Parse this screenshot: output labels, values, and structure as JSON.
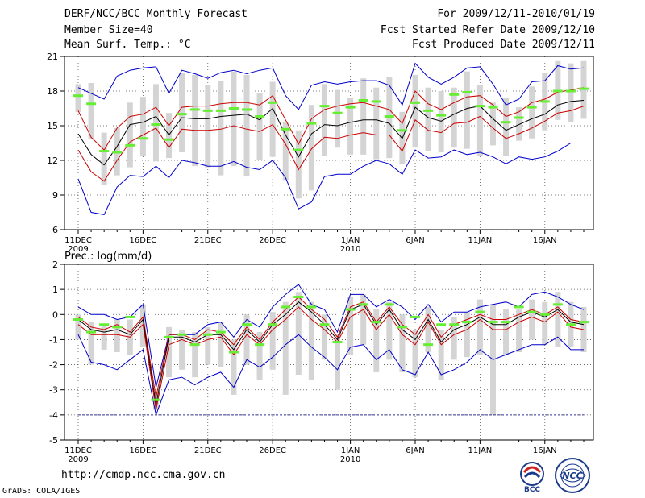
{
  "header": {
    "title": "DERF/NCC/BCC Monthly Forecast",
    "member_size": "Member Size=40",
    "variable": "Mean Surf. Temp.: °C",
    "period": "For 2009/12/11-2010/01/19",
    "started": "Fcst Started Refer Date 2009/12/10",
    "produced": "Fcst Produced Date 2009/12/11"
  },
  "footer": {
    "url": "http://cmdp.ncc.cma.gov.cn",
    "credit": "GrADS: COLA/IGES",
    "logo1": "BCC",
    "logo2": "NCC"
  },
  "colors": {
    "envelope": "#0000cc",
    "band": "#cc0000",
    "mean": "#000000",
    "obs": "#66ee33",
    "box": "#d4d4d4",
    "base": "#333399"
  },
  "chart_data": [
    {
      "type": "line",
      "title": "Mean Surf. Temp.: °C",
      "x_ticks": [
        "11DEC",
        "16DEC",
        "21DEC",
        "26DEC",
        "1JAN",
        "6JAN",
        "11JAN",
        "16JAN"
      ],
      "x_tick_days": [
        0,
        5,
        10,
        15,
        21,
        26,
        31,
        36
      ],
      "x_year_labels": [
        {
          "label": "2009",
          "day": 0
        },
        {
          "label": "2010",
          "day": 21
        }
      ],
      "ylim": [
        6,
        21
      ],
      "y_ticks": [
        6,
        9,
        12,
        15,
        18,
        21
      ],
      "series": [
        {
          "name": "max",
          "values": [
            18.3,
            17.8,
            17.3,
            19.3,
            19.8,
            20.0,
            20.1,
            17.8,
            19.8,
            19.5,
            19.1,
            19.6,
            19.8,
            19.5,
            19.8,
            20.0,
            17.6,
            16.4,
            18.5,
            18.8,
            18.6,
            18.8,
            18.9,
            18.9,
            18.5,
            16.8,
            20.4,
            19.2,
            18.6,
            19.2,
            20.0,
            20.1,
            18.6,
            16.8,
            17.3,
            18.8,
            18.9,
            20.2,
            19.9,
            20.0
          ]
        },
        {
          "name": "upper",
          "values": [
            16.3,
            14.0,
            12.9,
            14.8,
            15.8,
            16.0,
            16.6,
            15.0,
            16.6,
            16.7,
            16.7,
            16.9,
            17.0,
            17.0,
            16.8,
            17.6,
            15.5,
            13.4,
            15.6,
            16.4,
            16.7,
            16.9,
            17.0,
            16.7,
            16.4,
            15.2,
            18.0,
            16.9,
            16.4,
            17.0,
            17.5,
            17.6,
            16.8,
            15.8,
            16.2,
            17.0,
            17.3,
            17.9,
            18.1,
            18.3
          ]
        },
        {
          "name": "mean",
          "values": [
            14.3,
            12.5,
            11.6,
            13.2,
            15.1,
            15.3,
            15.8,
            14.2,
            15.7,
            15.6,
            15.6,
            15.8,
            15.9,
            16.0,
            15.5,
            16.5,
            14.2,
            12.3,
            14.3,
            15.1,
            15.0,
            15.3,
            15.5,
            15.5,
            15.2,
            13.9,
            16.6,
            15.7,
            15.4,
            16.0,
            16.5,
            16.7,
            15.6,
            14.6,
            15.1,
            15.6,
            16.0,
            16.8,
            17.1,
            17.2
          ]
        },
        {
          "name": "lower",
          "values": [
            12.9,
            11.0,
            10.2,
            12.0,
            13.6,
            14.2,
            14.8,
            13.1,
            14.7,
            14.6,
            14.6,
            14.7,
            15.0,
            14.7,
            14.5,
            15.1,
            13.4,
            11.2,
            13.0,
            14.0,
            13.9,
            14.2,
            14.4,
            14.2,
            14.2,
            12.8,
            15.5,
            14.6,
            14.4,
            15.2,
            15.3,
            15.8,
            14.8,
            13.9,
            14.3,
            14.8,
            15.4,
            16.1,
            16.3,
            16.7
          ]
        },
        {
          "name": "min",
          "values": [
            10.4,
            7.5,
            7.3,
            9.7,
            10.7,
            10.6,
            11.5,
            10.5,
            12.0,
            11.8,
            11.5,
            11.5,
            11.9,
            11.4,
            11.2,
            12.0,
            10.5,
            7.8,
            8.4,
            10.6,
            10.8,
            10.8,
            11.5,
            12.0,
            11.7,
            10.8,
            12.9,
            12.2,
            12.3,
            12.9,
            12.5,
            12.7,
            12.3,
            11.7,
            12.3,
            12.1,
            12.3,
            12.8,
            13.5,
            13.5
          ]
        }
      ],
      "box_ranges": [
        [
          16.2,
          18.6
        ],
        [
          13.8,
          18.7
        ],
        [
          9.9,
          14.4
        ],
        [
          10.7,
          14.8
        ],
        [
          11.4,
          17.0
        ],
        [
          12.4,
          17.5
        ],
        [
          11.9,
          18.6
        ],
        [
          12.2,
          16.1
        ],
        [
          12.7,
          19.6
        ],
        [
          11.5,
          19.4
        ],
        [
          11.4,
          18.5
        ],
        [
          10.7,
          18.9
        ],
        [
          11.5,
          19.7
        ],
        [
          10.6,
          19.4
        ],
        [
          12.0,
          17.8
        ],
        [
          12.3,
          18.8
        ],
        [
          10.3,
          15.3
        ],
        [
          8.7,
          14.6
        ],
        [
          9.4,
          16.8
        ],
        [
          12.4,
          18.6
        ],
        [
          13.1,
          18.1
        ],
        [
          12.5,
          17.4
        ],
        [
          12.5,
          19.1
        ],
        [
          12.1,
          18.3
        ],
        [
          12.2,
          19.2
        ],
        [
          11.7,
          16.2
        ],
        [
          13.1,
          19.4
        ],
        [
          12.8,
          18.3
        ],
        [
          12.7,
          18.0
        ],
        [
          13.1,
          18.3
        ],
        [
          13.0,
          19.7
        ],
        [
          12.4,
          18.5
        ],
        [
          13.3,
          17.0
        ],
        [
          12.4,
          17.4
        ],
        [
          13.7,
          16.6
        ],
        [
          13.9,
          18.4
        ],
        [
          14.6,
          19.6
        ],
        [
          15.5,
          20.6
        ],
        [
          15.3,
          20.4
        ],
        [
          15.6,
          20.6
        ]
      ],
      "observed": [
        17.6,
        16.9,
        12.8,
        12.7,
        13.3,
        13.9,
        15.1,
        13.8,
        16.0,
        16.4,
        16.3,
        16.3,
        16.5,
        16.4,
        15.8,
        17.0,
        14.7,
        12.9,
        15.2,
        16.7,
        16.1,
        16.6,
        17.2,
        17.1,
        15.8,
        14.6,
        17.0,
        16.3,
        15.9,
        17.7,
        17.9,
        16.7,
        16.6,
        15.3,
        15.7,
        16.6,
        17.1,
        18.0,
        18.0,
        18.2
      ]
    },
    {
      "type": "line",
      "title": "Prec.: log(mm/d)",
      "x_ticks": [
        "11DEC",
        "16DEC",
        "21DEC",
        "26DEC",
        "1JAN",
        "6JAN",
        "11JAN",
        "16JAN"
      ],
      "x_tick_days": [
        0,
        5,
        10,
        15,
        21,
        26,
        31,
        36
      ],
      "x_year_labels": [
        {
          "label": "2009",
          "day": 0
        },
        {
          "label": "2010",
          "day": 21
        }
      ],
      "ylim": [
        -5,
        2
      ],
      "y_ticks": [
        -5,
        -4,
        -3,
        -2,
        -1,
        0,
        1,
        2
      ],
      "series": [
        {
          "name": "max",
          "values": [
            0.3,
            0.0,
            0.0,
            -0.2,
            -0.1,
            0.4,
            -2.9,
            -0.8,
            -0.8,
            -0.8,
            -0.4,
            -0.3,
            -0.9,
            -0.2,
            -0.5,
            0.3,
            0.8,
            1.2,
            0.4,
            0.2,
            -0.7,
            0.8,
            0.8,
            0.3,
            0.6,
            0.3,
            -0.2,
            0.4,
            -0.3,
            0.1,
            0.1,
            0.3,
            0.4,
            0.5,
            0.3,
            0.8,
            0.9,
            0.7,
            0.4,
            0.2
          ]
        },
        {
          "name": "upper",
          "values": [
            -0.1,
            -0.5,
            -0.6,
            -0.4,
            -0.7,
            -0.1,
            -3.3,
            -0.8,
            -0.8,
            -1.0,
            -0.6,
            -0.7,
            -1.2,
            -0.5,
            -1.0,
            -0.3,
            0.2,
            0.7,
            0.2,
            -0.2,
            -0.9,
            0.3,
            0.5,
            -0.3,
            0.3,
            -0.4,
            -0.8,
            0.0,
            -0.9,
            -0.4,
            -0.2,
            0.0,
            -0.2,
            -0.2,
            0.0,
            0.2,
            0.0,
            0.3,
            -0.2,
            -0.3
          ]
        },
        {
          "name": "mean",
          "values": [
            -0.2,
            -0.6,
            -0.7,
            -0.6,
            -0.8,
            -0.2,
            -3.6,
            -0.9,
            -0.9,
            -1.1,
            -0.8,
            -0.8,
            -1.4,
            -0.6,
            -1.1,
            -0.4,
            0.0,
            0.5,
            0.1,
            -0.4,
            -1.0,
            0.2,
            0.4,
            -0.4,
            0.2,
            -0.6,
            -1.0,
            -0.2,
            -1.1,
            -0.6,
            -0.4,
            -0.1,
            -0.4,
            -0.4,
            -0.1,
            0.1,
            -0.1,
            0.2,
            -0.3,
            -0.4
          ]
        },
        {
          "name": "lower",
          "values": [
            -0.4,
            -0.8,
            -0.8,
            -0.8,
            -0.9,
            -0.4,
            -3.8,
            -1.2,
            -1.0,
            -1.2,
            -1.0,
            -0.9,
            -1.6,
            -0.8,
            -1.2,
            -0.6,
            -0.2,
            0.3,
            -0.2,
            -0.6,
            -1.1,
            -0.1,
            0.2,
            -0.6,
            0.0,
            -0.8,
            -1.2,
            -0.3,
            -1.2,
            -0.8,
            -0.6,
            -0.2,
            -0.6,
            -0.6,
            -0.3,
            -0.1,
            -0.3,
            0.1,
            -0.5,
            -0.6
          ]
        },
        {
          "name": "min",
          "values": [
            -0.8,
            -1.9,
            -2.0,
            -2.2,
            -1.8,
            -1.4,
            -4.0,
            -2.6,
            -2.5,
            -2.8,
            -2.5,
            -2.3,
            -2.9,
            -1.8,
            -2.1,
            -1.7,
            -1.2,
            -0.8,
            -1.3,
            -1.7,
            -2.2,
            -1.3,
            -1.2,
            -1.8,
            -1.4,
            -2.2,
            -2.4,
            -1.5,
            -2.4,
            -2.2,
            -1.9,
            -1.4,
            -1.8,
            -1.6,
            -1.4,
            -1.2,
            -1.2,
            -0.9,
            -1.4,
            -1.4
          ]
        }
      ],
      "box_ranges": [
        [
          -1.0,
          0.0
        ],
        [
          -2.0,
          -0.3
        ],
        [
          -1.4,
          -0.4
        ],
        [
          -1.5,
          -0.2
        ],
        [
          -1.6,
          -0.2
        ],
        [
          -1.3,
          0.4
        ],
        [
          -3.8,
          -3.1
        ],
        [
          -2.5,
          -0.5
        ],
        [
          -2.2,
          -0.6
        ],
        [
          -2.5,
          -0.7
        ],
        [
          -2.0,
          -0.5
        ],
        [
          -2.1,
          -0.3
        ],
        [
          -3.2,
          -1.0
        ],
        [
          -2.0,
          0.0
        ],
        [
          -2.6,
          -0.7
        ],
        [
          -2.2,
          0.1
        ],
        [
          -3.2,
          0.5
        ],
        [
          -2.4,
          0.9
        ],
        [
          -2.6,
          0.5
        ],
        [
          -1.8,
          0.0
        ],
        [
          -3.0,
          -0.8
        ],
        [
          -1.6,
          0.7
        ],
        [
          -1.2,
          0.8
        ],
        [
          -2.3,
          0.2
        ],
        [
          -1.8,
          0.5
        ],
        [
          -2.3,
          0.0
        ],
        [
          -2.5,
          -0.6
        ],
        [
          -1.5,
          0.3
        ],
        [
          -2.6,
          -0.6
        ],
        [
          -1.8,
          -0.1
        ],
        [
          -1.7,
          0.1
        ],
        [
          -1.6,
          0.6
        ],
        [
          -4.0,
          0.4
        ],
        [
          -1.6,
          0.2
        ],
        [
          -1.5,
          0.2
        ],
        [
          -1.0,
          0.6
        ],
        [
          -1.2,
          0.5
        ],
        [
          -1.3,
          0.9
        ],
        [
          -1.3,
          0.5
        ],
        [
          -1.5,
          0.3
        ]
      ],
      "observed": [
        -0.2,
        -0.7,
        -0.4,
        -0.5,
        -0.1,
        null,
        -3.4,
        -0.9,
        -0.8,
        -1.2,
        -0.8,
        -0.7,
        -1.5,
        -0.4,
        -1.2,
        -0.4,
        0.3,
        0.7,
        0.3,
        -0.4,
        -1.1,
        0.2,
        0.4,
        -0.3,
        0.4,
        -0.5,
        -0.1,
        -1.2,
        -0.4,
        -0.4,
        -0.3,
        0.1,
        -0.3,
        -0.3,
        0.3,
        0.1,
        0.0,
        0.4,
        -0.4,
        -0.3
      ]
    }
  ]
}
